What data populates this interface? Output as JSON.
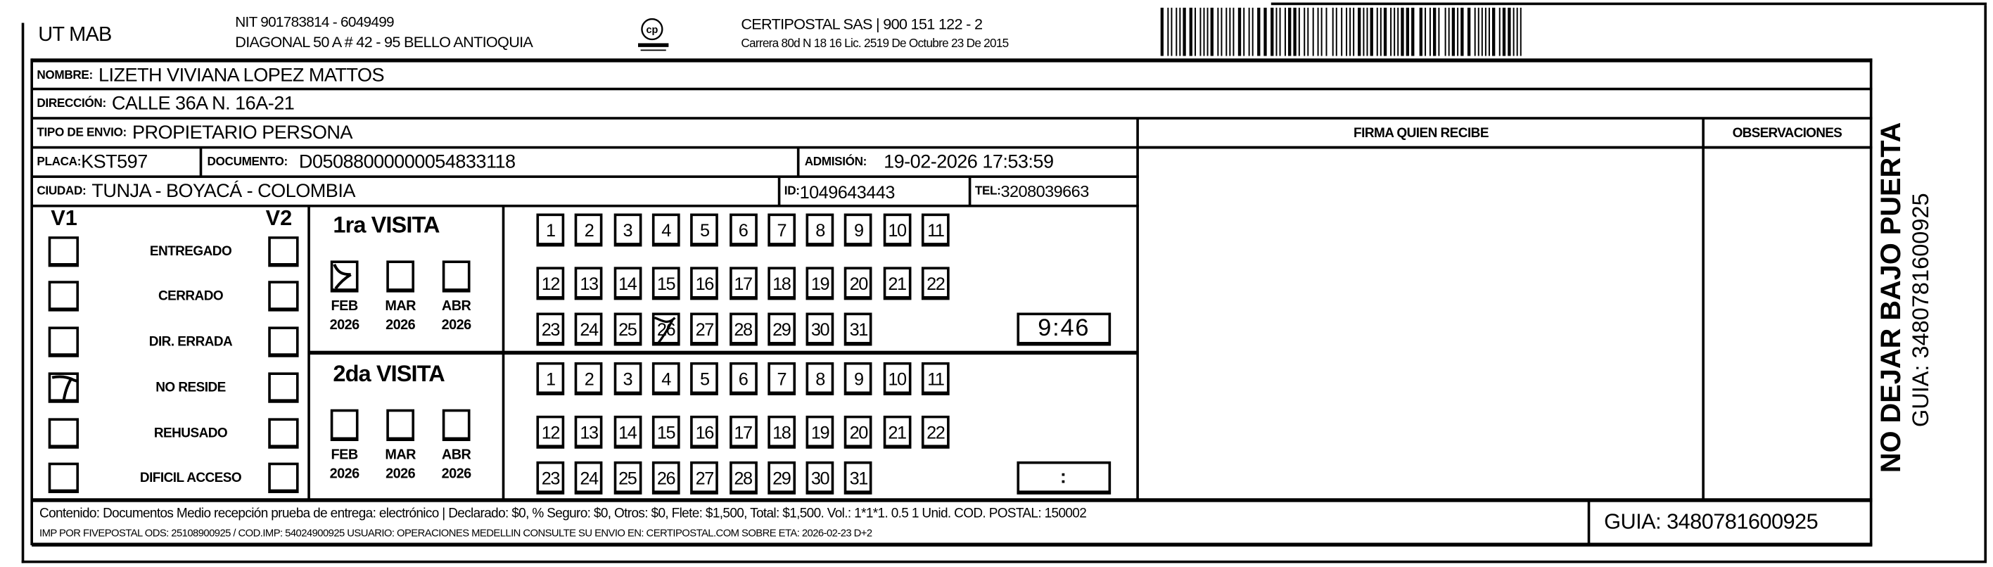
{
  "header": {
    "company": "UT MAB",
    "nit": "NIT 901783814 - 6049499",
    "address": "DIAGONAL 50 A # 42 - 95  BELLO  ANTIOQUIA",
    "logo_text": "CERTIPOSTAL",
    "carrier": "CERTIPOSTAL SAS | 900 151 122 - 2",
    "license": "Carrera 80d N 18 16  Lic. 2519 De Octubre 23 De 2015"
  },
  "recipient": {
    "nombre_label": "NOMBRE:",
    "nombre": "LIZETH VIVIANA LOPEZ MATTOS",
    "direccion_label": "DIRECCIÓN:",
    "direccion": "CALLE 36A N. 16A-21",
    "tipo_label": "TIPO DE ENVIO:",
    "tipo": "PROPIETARIO PERSONA",
    "placa_label": "PLACA:",
    "placa": "KST597",
    "documento_label": "DOCUMENTO:",
    "documento": "D05088000000054833118",
    "admision_label": "ADMISIÓN:",
    "admision": "19-02-2026 17:53:59",
    "ciudad_label": "CIUDAD:",
    "ciudad": "TUNJA - BOYACÁ - COLOMBIA",
    "id_label": "ID:",
    "id": "1049643443",
    "tel_label": "TEL:",
    "tel": "3208039663"
  },
  "signature": {
    "firma_label": "FIRMA QUIEN RECIBE",
    "observaciones_label": "OBSERVACIONES"
  },
  "status": {
    "v1_label": "V1",
    "v2_label": "V2",
    "options": [
      {
        "label": "ENTREGADO",
        "v1": false,
        "v2": false
      },
      {
        "label": "CERRADO",
        "v1": false,
        "v2": false
      },
      {
        "label": "DIR. ERRADA",
        "v1": false,
        "v2": false
      },
      {
        "label": "NO RESIDE",
        "v1": true,
        "v2": false
      },
      {
        "label": "REHUSADO",
        "v1": false,
        "v2": false
      },
      {
        "label": "DIFICIL ACCESO",
        "v1": false,
        "v2": false
      }
    ]
  },
  "visits": [
    {
      "title": "1ra VISITA",
      "months": [
        {
          "month": "FEB",
          "year": "2026",
          "checked": true
        },
        {
          "month": "MAR",
          "year": "2026",
          "checked": false
        },
        {
          "month": "ABR",
          "year": "2026",
          "checked": false
        }
      ],
      "days": [
        "1",
        "2",
        "3",
        "4",
        "5",
        "6",
        "7",
        "8",
        "9",
        "10",
        "11",
        "12",
        "13",
        "14",
        "15",
        "16",
        "17",
        "18",
        "19",
        "20",
        "21",
        "22",
        "23",
        "24",
        "25",
        "26",
        "27",
        "28",
        "29",
        "30",
        "31"
      ],
      "marked_day": "26",
      "time": "9:46"
    },
    {
      "title": "2da VISITA",
      "months": [
        {
          "month": "FEB",
          "year": "2026",
          "checked": false
        },
        {
          "month": "MAR",
          "year": "2026",
          "checked": false
        },
        {
          "month": "ABR",
          "year": "2026",
          "checked": false
        }
      ],
      "days": [
        "1",
        "2",
        "3",
        "4",
        "5",
        "6",
        "7",
        "8",
        "9",
        "10",
        "11",
        "12",
        "13",
        "14",
        "15",
        "16",
        "17",
        "18",
        "19",
        "20",
        "21",
        "22",
        "23",
        "24",
        "25",
        "26",
        "27",
        "28",
        "29",
        "30",
        "31"
      ],
      "marked_day": null,
      "time": ":"
    }
  ],
  "footer": {
    "contenido": "Contenido: Documentos Medio recepción prueba de entrega: electrónico | Declarado: $0, % Seguro: $0, Otros: $0, Flete: $1,500, Total: $1,500. Vol.: 1*1*1. 0.5  1 Unid. COD. POSTAL: 150002",
    "imp": "IMP POR FIVEPOSTAL ODS: 25108900925 / COD.IMP: 54024900925 USUARIO: OPERACIONES MEDELLIN CONSULTE SU ENVIO EN: CERTIPOSTAL.COM SOBRE ETA: 2026-02-23 D+2",
    "guia": "GUIA: 3480781600925"
  },
  "side": {
    "warning": "NO DEJAR BAJO PUERTA",
    "guia": "GUIA: 3480781600925"
  },
  "barcode": {
    "value": "3480781600925"
  }
}
